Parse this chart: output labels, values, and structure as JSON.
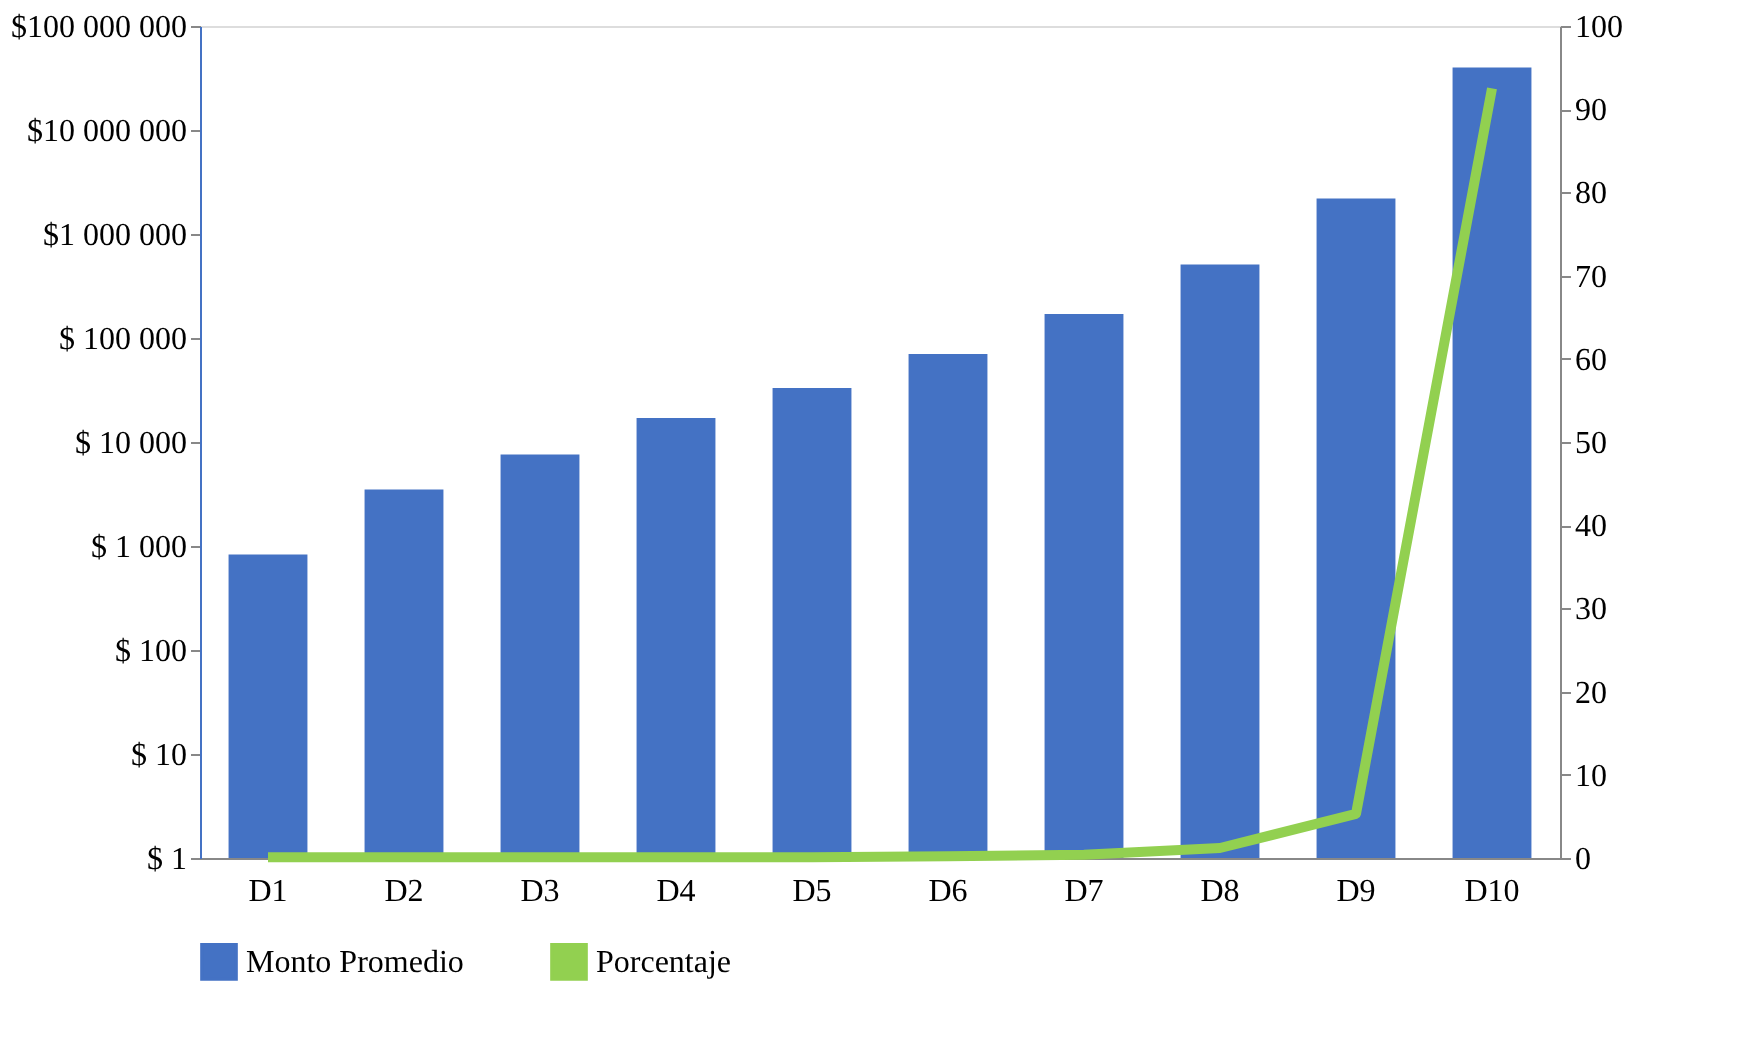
{
  "chart_data": {
    "type": "bar",
    "categories": [
      "D1",
      "D2",
      "D3",
      "D4",
      "D5",
      "D6",
      "D7",
      "D8",
      "D9",
      "D10"
    ],
    "series": [
      {
        "name": "Monto Promedio",
        "color": "#4472c4",
        "values": [
          830,
          3500,
          7600,
          17000,
          33000,
          70000,
          170000,
          510000,
          2200000,
          40000000
        ]
      },
      {
        "name": "Porcentaje",
        "type": "line",
        "axis": "y2",
        "color": "#92d050",
        "values": [
          0.1,
          0.1,
          0.1,
          0.1,
          0.1,
          0.2,
          0.4,
          1.2,
          5.3,
          92.5
        ]
      }
    ],
    "log": "y",
    "ylim": [
      1,
      100000000
    ],
    "yticks": [
      {
        "value": 1,
        "label": "$ 1"
      },
      {
        "value": 10,
        "label": "$ 10"
      },
      {
        "value": 100,
        "label": "$  100"
      },
      {
        "value": 1000,
        "label": "$ 1 000"
      },
      {
        "value": 10000,
        "label": "$ 10 000"
      },
      {
        "value": 100000,
        "label": "$ 100 000"
      },
      {
        "value": 1000000,
        "label": "$1 000 000"
      },
      {
        "value": 10000000,
        "label": "$10 000 000"
      },
      {
        "value": 100000000,
        "label": "$100 000 000"
      }
    ],
    "y2lim": [
      0,
      100
    ],
    "y2ticks": [
      0,
      10,
      20,
      30,
      40,
      50,
      60,
      70,
      80,
      90,
      100
    ],
    "grid": false,
    "legend": "bottom",
    "marker": "none",
    "line_style": "solid"
  }
}
